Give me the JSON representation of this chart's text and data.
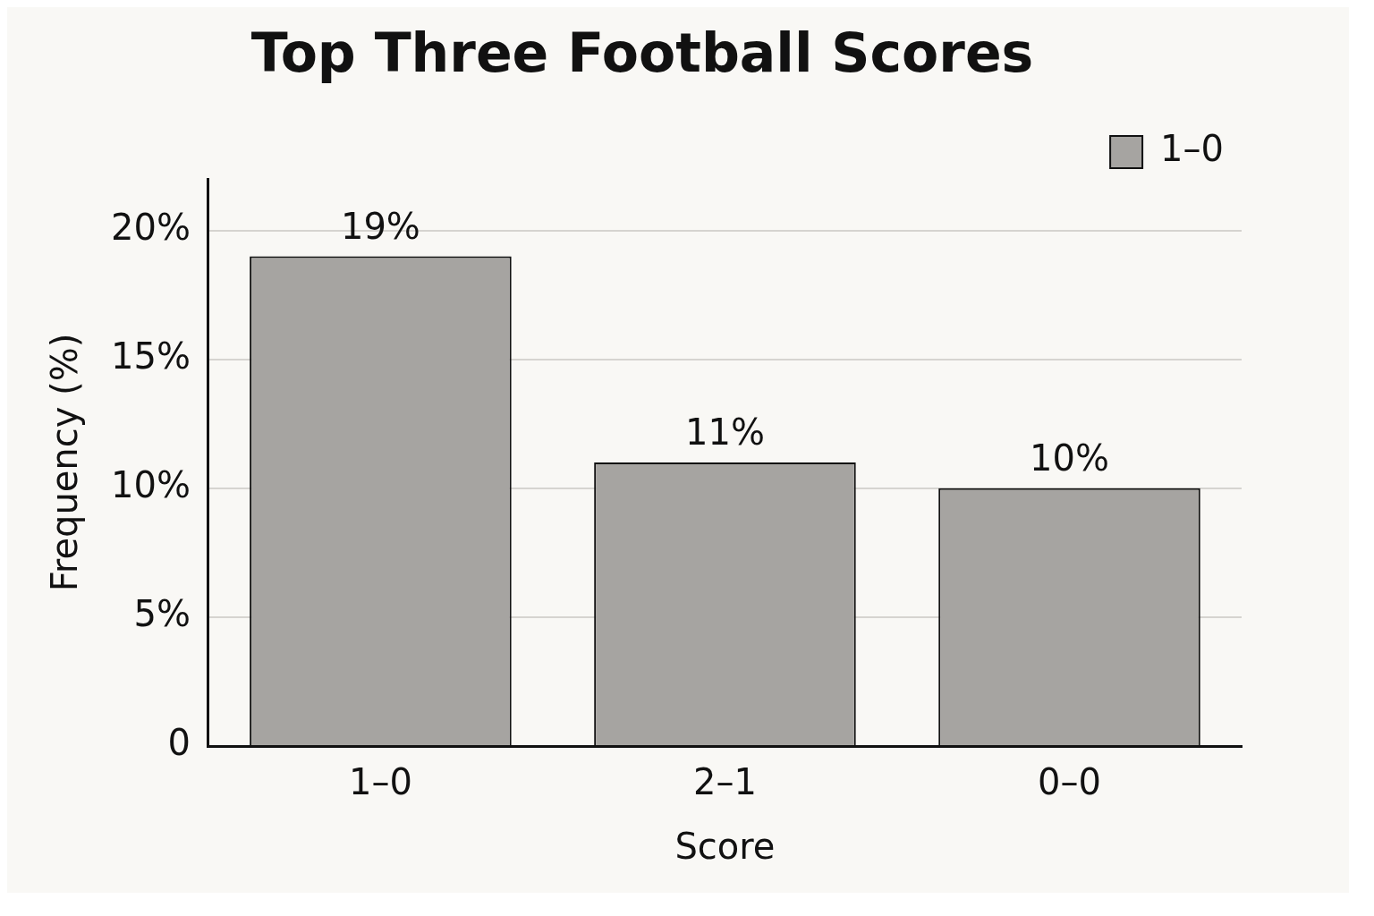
{
  "chart_data": {
    "type": "bar",
    "title": "Top Three Football Scores",
    "xlabel": "Score",
    "ylabel": "Frequency (%)",
    "categories": [
      "1–0",
      "2–1",
      "0–0"
    ],
    "series": [
      {
        "name": "1–0",
        "color": "#a6a4a1",
        "values": [
          19,
          11,
          10
        ],
        "value_labels": [
          "19%",
          "11%",
          "10%"
        ]
      }
    ],
    "ylim": [
      0,
      22
    ],
    "yticks": [
      0,
      {
        "value": 5,
        "label": "5%"
      },
      {
        "value": 10,
        "label": "10%"
      },
      {
        "value": 15,
        "label": "15%"
      },
      {
        "value": 20,
        "label": "20%"
      }
    ],
    "grid": "y",
    "legend": "top right"
  }
}
